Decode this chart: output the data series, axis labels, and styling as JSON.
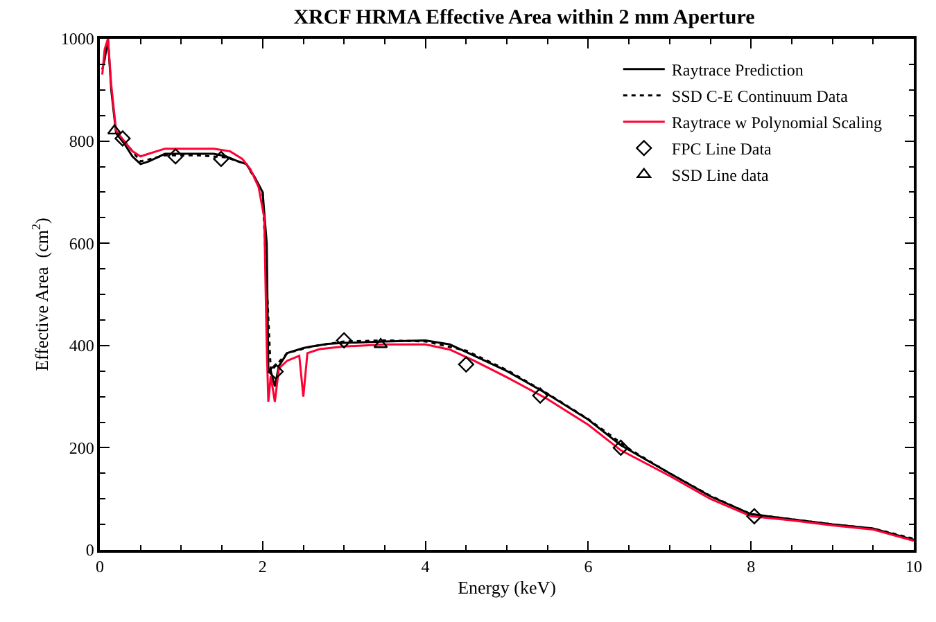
{
  "chart_data": {
    "type": "line",
    "title": "XRCF HRMA Effective Area within 2 mm Aperture",
    "xlabel": "Energy (keV)",
    "ylabel": "Effective Area  (cm$^{2}$)",
    "xlim": [
      0,
      10
    ],
    "ylim": [
      0,
      1000
    ],
    "xticks": [
      0,
      2,
      4,
      6,
      8,
      10
    ],
    "yticks": [
      0,
      200,
      400,
      600,
      800,
      1000
    ],
    "legend": "top right",
    "series": [
      {
        "name": "Raytrace Prediction",
        "color": "#000000",
        "line_style": "solid",
        "marker": "none",
        "x": [
          0.03,
          0.06,
          0.1,
          0.14,
          0.2,
          0.3,
          0.4,
          0.5,
          0.6,
          0.8,
          1.0,
          1.2,
          1.4,
          1.55,
          1.7,
          1.8,
          1.9,
          2.0,
          2.05,
          2.07,
          2.1,
          2.15,
          2.2,
          2.3,
          2.5,
          2.6,
          2.8,
          3.0,
          3.5,
          4.0,
          4.3,
          4.6,
          5.0,
          5.5,
          6.0,
          6.4,
          7.0,
          7.5,
          8.0,
          8.5,
          9.0,
          9.5,
          10.0
        ],
        "values": [
          940,
          960,
          1000,
          900,
          815,
          795,
          770,
          755,
          760,
          775,
          775,
          775,
          775,
          770,
          760,
          755,
          730,
          700,
          600,
          355,
          350,
          320,
          360,
          385,
          395,
          398,
          403,
          405,
          408,
          410,
          402,
          380,
          350,
          305,
          255,
          205,
          150,
          105,
          70,
          60,
          50,
          42,
          20
        ]
      },
      {
        "name": "SSD C-E Continuum Data",
        "color": "#000000",
        "line_style": "dotted",
        "marker": "none",
        "x": [
          0.3,
          0.5,
          0.8,
          1.2,
          1.55,
          1.8,
          2.0,
          2.1,
          2.3,
          2.6,
          3.0,
          3.5,
          4.0,
          4.5,
          5.0,
          5.5,
          6.0,
          6.5,
          7.0,
          7.5,
          8.0,
          8.5,
          9.0,
          9.5,
          10.0
        ],
        "values": [
          800,
          760,
          772,
          772,
          768,
          755,
          700,
          350,
          385,
          398,
          408,
          410,
          408,
          390,
          352,
          306,
          256,
          198,
          150,
          106,
          70,
          60,
          50,
          42,
          22
        ]
      },
      {
        "name": "Raytrace w Polynomial Scaling",
        "color": "#ff0033",
        "line_style": "solid",
        "marker": "none",
        "x": [
          0.03,
          0.06,
          0.1,
          0.14,
          0.2,
          0.3,
          0.4,
          0.5,
          0.6,
          0.8,
          1.0,
          1.2,
          1.4,
          1.6,
          1.75,
          1.85,
          1.95,
          2.02,
          2.05,
          2.07,
          2.1,
          2.15,
          2.2,
          2.3,
          2.45,
          2.5,
          2.55,
          2.7,
          3.0,
          3.5,
          4.0,
          4.3,
          4.6,
          5.0,
          5.5,
          6.0,
          6.4,
          7.0,
          7.5,
          8.0,
          8.5,
          9.0,
          9.5,
          10.0
        ],
        "values": [
          930,
          980,
          1000,
          910,
          820,
          800,
          780,
          770,
          775,
          785,
          785,
          785,
          785,
          780,
          765,
          745,
          710,
          650,
          400,
          290,
          340,
          290,
          355,
          370,
          380,
          300,
          385,
          393,
          398,
          402,
          402,
          392,
          370,
          338,
          295,
          245,
          195,
          145,
          100,
          66,
          58,
          48,
          40,
          18
        ]
      },
      {
        "name": "FPC Line Data",
        "type": "scatter",
        "color": "#000000",
        "marker": "diamond",
        "x": [
          0.28,
          0.93,
          1.49,
          2.16,
          3.0,
          4.5,
          5.41,
          6.4,
          8.04
        ],
        "values": [
          805,
          770,
          765,
          349,
          410,
          363,
          302,
          200,
          66
        ]
      },
      {
        "name": "SSD Line data",
        "type": "scatter",
        "color": "#000000",
        "marker": "triangle",
        "x": [
          0.18,
          3.45
        ],
        "values": [
          820,
          402
        ]
      }
    ]
  }
}
